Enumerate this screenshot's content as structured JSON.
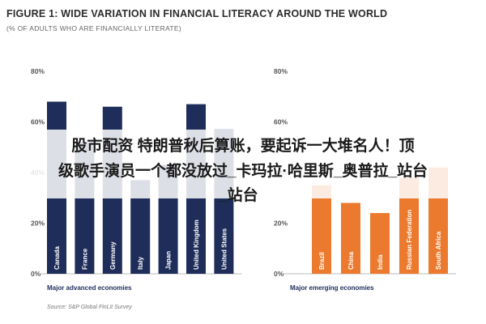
{
  "title": "FIGURE 1: WIDE VARIATION IN FINANCIAL LITERACY AROUND THE WORLD",
  "subtitle": "(% OF ADULTS WHO ARE FINANCIALLY LITERATE)",
  "overlay": {
    "line1": "股市配资 特朗普秋后算账，要起诉一大堆名人！顶",
    "line2": "级歌手演员一个都没放过_卡玛拉·哈里斯_奥普拉_站台",
    "line3": "_站台"
  },
  "source": "Source: S&P Global FinLit Survey",
  "colors": {
    "advanced": "#1f2d5a",
    "emerging": "#ec7a2e",
    "bar_label": "#ffffff",
    "axis_text": "#555555",
    "group_label": "#1f2d5a"
  },
  "chart_data": [
    {
      "type": "bar",
      "group_label": "Major advanced economies",
      "categories": [
        "Canada",
        "France",
        "Germany",
        "Italy",
        "Japan",
        "United Kingdom",
        "United States"
      ],
      "values": [
        68,
        52,
        66,
        37,
        43,
        67,
        57
      ],
      "yticks": [
        "80%",
        "60%",
        "40%",
        "20%",
        "0%"
      ],
      "ylim": [
        0,
        80
      ],
      "color": "#1f2d5a"
    },
    {
      "type": "bar",
      "group_label": "Major emerging economies",
      "categories": [
        "Brazil",
        "China",
        "India",
        "Russian Federation",
        "South Africa"
      ],
      "values": [
        35,
        28,
        24,
        38,
        42
      ],
      "yticks": [
        "80%",
        "60%",
        "40%",
        "20%",
        "0%"
      ],
      "ylim": [
        0,
        80
      ],
      "color": "#ec7a2e"
    }
  ]
}
